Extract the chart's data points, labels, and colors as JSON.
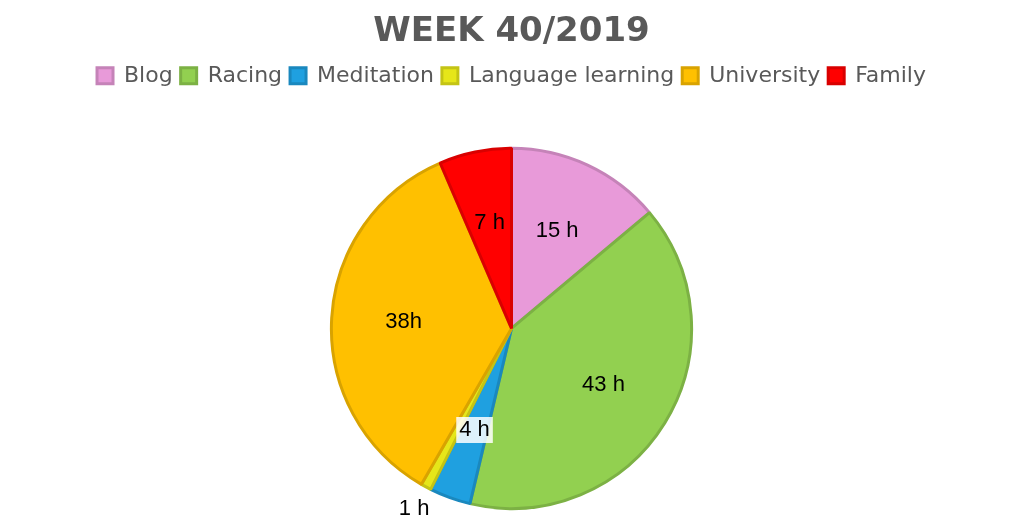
{
  "chart_data": {
    "type": "pie",
    "title": "WEEK 40/2019",
    "categories": [
      "Blog",
      "Racing",
      "Meditation",
      "Language learning",
      "University",
      "Family"
    ],
    "values": [
      15,
      43,
      4,
      1,
      38,
      7
    ],
    "value_labels": [
      "15 h",
      "43 h",
      "4 h",
      "1 h",
      "38h",
      "7 h"
    ],
    "colors": [
      "#e89ad9",
      "#92d050",
      "#1fa0e0",
      "#e6e619",
      "#ffc000",
      "#ff0000"
    ],
    "legend": "top"
  }
}
